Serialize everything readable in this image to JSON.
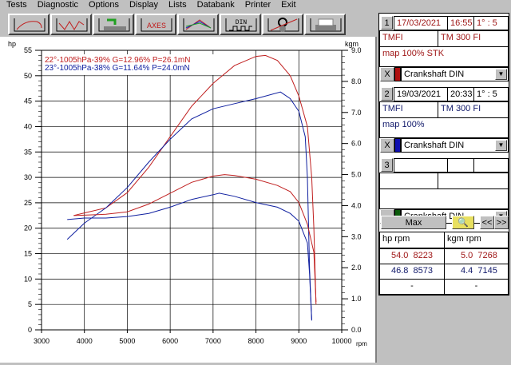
{
  "menu": [
    "Tests",
    "Diagnostic",
    "Options",
    "Display",
    "Lists",
    "Databank",
    "Printer",
    "Exit"
  ],
  "toolbar": [
    {
      "icon": "power-curve-icon"
    },
    {
      "icon": "multi-curve-icon"
    },
    {
      "icon": "export-icon"
    },
    {
      "icon": "axes-icon",
      "label": "AXES"
    },
    {
      "icon": "overlay-curves-icon"
    },
    {
      "icon": "din-icon",
      "label": "DIN"
    },
    {
      "icon": "zoom-curve-icon"
    },
    {
      "icon": "printer-icon"
    }
  ],
  "chart_data": {
    "type": "line",
    "xlabel": "rpm",
    "ylabel_left": "hp",
    "ylabel_right": "kgm",
    "xlim": [
      3000,
      10000
    ],
    "ylim_left": [
      0,
      55
    ],
    "ylim_right": [
      0,
      9.0
    ],
    "xticks": [
      "3000",
      "4000",
      "5000",
      "6000",
      "7000",
      "8000",
      "9000",
      "10000"
    ],
    "yticks_left": [
      "0",
      "5",
      "10",
      "15",
      "20",
      "25",
      "30",
      "35",
      "40",
      "45",
      "50",
      "55"
    ],
    "yticks_right": [
      "0.0",
      "1.0",
      "2.0",
      "3.0",
      "4.0",
      "5.0",
      "6.0",
      "7.0",
      "8.0",
      "9.0"
    ],
    "grid": true,
    "legend": [
      "22°-1005hPa-39% G=12.96% P=26.1mN",
      "23°-1005hPa-38% G=11.64% P=24.0mN"
    ],
    "legend_placement": "top-left",
    "series": [
      {
        "name": "22°-1005hPa-39% G=12.96% P=26.1mN",
        "quantity": "hp",
        "color": "#c02020",
        "x": [
          3750,
          4000,
          4500,
          5000,
          5500,
          6000,
          6500,
          7000,
          7500,
          8000,
          8223,
          8500,
          8800,
          9000,
          9200,
          9300,
          9350,
          9400
        ],
        "y": [
          22.5,
          23,
          24,
          27,
          32,
          38,
          44,
          48.5,
          52,
          53.8,
          54.0,
          53,
          50,
          46,
          40,
          30,
          20,
          5
        ]
      },
      {
        "name": "23°-1005hPa-38% G=11.64% P=24.0mN",
        "quantity": "hp",
        "color": "#1020a0",
        "x": [
          3600,
          4000,
          4500,
          5000,
          5500,
          6000,
          6500,
          7000,
          7500,
          8000,
          8573,
          8800,
          9000,
          9150,
          9200,
          9250,
          9300
        ],
        "y": [
          17.8,
          21,
          24,
          28,
          33,
          37.5,
          41.5,
          43.5,
          44.5,
          45.5,
          46.8,
          45.5,
          43,
          38,
          30,
          12,
          2
        ]
      },
      {
        "name": "22°-1005hPa-39% G=12.96% P=26.1mN",
        "quantity": "kgm",
        "color": "#c02020",
        "x": [
          3750,
          4500,
          5000,
          5500,
          6000,
          6500,
          7000,
          7268,
          7500,
          8000,
          8500,
          8800,
          9000,
          9200,
          9350,
          9400
        ],
        "y": [
          3.68,
          3.72,
          3.8,
          4.05,
          4.4,
          4.75,
          4.95,
          5.0,
          4.97,
          4.85,
          4.65,
          4.45,
          4.1,
          3.4,
          2.5,
          0.9
        ]
      },
      {
        "name": "23°-1005hPa-38% G=11.64% P=24.0mN",
        "quantity": "kgm",
        "color": "#1020a0",
        "x": [
          3600,
          4000,
          4500,
          5000,
          5500,
          6000,
          6500,
          7000,
          7145,
          7500,
          8000,
          8500,
          8800,
          9000,
          9200,
          9250,
          9300
        ],
        "y": [
          3.55,
          3.6,
          3.6,
          3.65,
          3.75,
          3.95,
          4.2,
          4.35,
          4.4,
          4.3,
          4.1,
          3.95,
          3.75,
          3.5,
          2.8,
          1.8,
          0.3
        ]
      }
    ]
  },
  "panel": {
    "runs": [
      {
        "num": "1",
        "date": "17/03/2021",
        "time": "16:55",
        "ratio": "1° : 5",
        "model": "TMFI",
        "engine": "TM 300 FI",
        "map": "map  100% STK",
        "close": "X",
        "curve": "Crankshaft DIN",
        "color": "#b01010"
      },
      {
        "num": "2",
        "date": "19/03/2021",
        "time": "20:33",
        "ratio": "1° : 5",
        "model": "TMFI",
        "engine": "TM 300 FI",
        "map": "map  100%",
        "close": "X",
        "curve": "Crankshaft DIN",
        "color": "#1010b0"
      },
      {
        "num": "3",
        "date": "",
        "time": "",
        "ratio": "",
        "model": "",
        "engine": "",
        "map": "",
        "close": "",
        "curve": "Crankshaft DIN",
        "color": "#0a5a0a"
      }
    ],
    "max_label": "Max",
    "prev_label": "<<",
    "next_label": ">>",
    "table_head": {
      "hp": "hp   rpm",
      "kgm": "kgm  rpm"
    },
    "rows": [
      {
        "hp": "54.0  8223",
        "kgm": "5.0  7268"
      },
      {
        "hp": "46.8  8573",
        "kgm": "4.4  7145"
      },
      {
        "hp": "-",
        "kgm": "-"
      }
    ]
  }
}
